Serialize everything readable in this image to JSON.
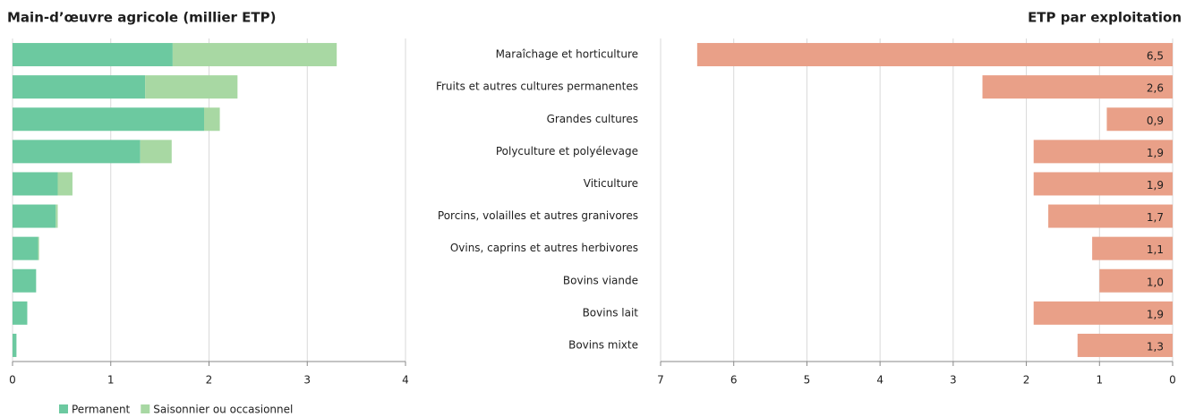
{
  "chart_data": [
    {
      "type": "bar",
      "orientation": "horizontal",
      "stacked": true,
      "title": "Main-d’œuvre agricole (millier ETP)",
      "series": [
        {
          "name": "Permanent",
          "color": "#6cc9a0",
          "values": [
            1.63,
            1.35,
            1.95,
            1.3,
            0.46,
            0.44,
            0.26,
            0.24,
            0.15,
            0.04
          ]
        },
        {
          "name": "Saisonnier ou occasionnel",
          "color": "#a8d8a3",
          "values": [
            1.67,
            0.94,
            0.16,
            0.32,
            0.15,
            0.02,
            0.01,
            0,
            0,
            0
          ]
        }
      ],
      "xlim": [
        0,
        4
      ],
      "xticks": [
        0,
        1,
        2,
        3,
        4
      ],
      "grid": true
    },
    {
      "type": "bar",
      "orientation": "horizontal",
      "title": "ETP par exploitation",
      "categories": [
        "Maraîchage et horticulture",
        "Fruits et autres cultures permanentes",
        "Grandes cultures",
        "Polyculture et polyélevage",
        "Viticulture",
        "Porcins, volailles et autres granivores",
        "Ovins, caprins et autres herbivores",
        "Bovins viande",
        "Bovins lait",
        "Bovins mixte"
      ],
      "values": [
        6.5,
        2.6,
        0.9,
        1.9,
        1.9,
        1.7,
        1.1,
        1.0,
        1.9,
        1.3
      ],
      "value_labels": [
        "6,5",
        "2,6",
        "0,9",
        "1,9",
        "1,9",
        "1,7",
        "1,1",
        "1,0",
        "1,9",
        "1,3"
      ],
      "color": "#e9a088",
      "xlim": [
        7,
        0
      ],
      "xticks": [
        7,
        6,
        5,
        4,
        3,
        2,
        1,
        0
      ],
      "grid": true
    }
  ]
}
